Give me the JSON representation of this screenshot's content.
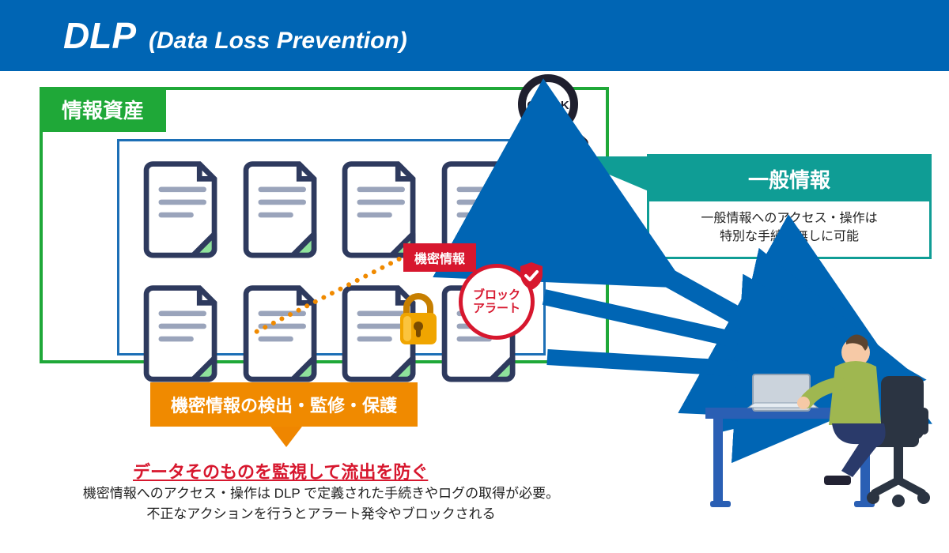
{
  "colors": {
    "header_bg": "#0065b4",
    "green": "#1fa838",
    "mid_blue": "#1c6fb6",
    "teal": "#0f9d95",
    "red": "#d7172e",
    "orange": "#f08a00",
    "orange_darker": "#ef8600",
    "doc_stroke": "#2e3a5e",
    "doc_line": "#9aa4bb",
    "doc_fold": "#8ee29b",
    "arrow_blue": "#0065b4",
    "lock_body": "#f0a500",
    "lock_shine": "#ffd257",
    "shield_red": "#d7172e",
    "magnifier_dark": "#1f1f2e",
    "desk_blue": "#2a5fb4",
    "chair_dark": "#2b3442",
    "person_shirt": "#9fb750",
    "person_pants": "#2a3a6a",
    "laptop_gray": "#cbd3dc",
    "skin": "#f6c9a6"
  },
  "header": {
    "title": "DLP",
    "sub": "(Data Loss Prevention)"
  },
  "asset_box": {
    "label": "情報資産"
  },
  "magnifier_label": "CHECK",
  "info_panel": {
    "title": "一般情報",
    "body": "一般情報へのアクセス・操作は\n特別な手続き無しに可能"
  },
  "confidential_tag": "機密情報",
  "block_badge": "ブロック\nアラート",
  "orange_bar": "機密情報の検出・監修・保護",
  "headline": "データそのものを監視して流出を防ぐ",
  "desc": "機密情報へのアクセス・操作は DLP で定義された手続きやログの取得が必要。\n不正なアクションを行うとアラート発令やブロックされる",
  "doc_count": 8
}
